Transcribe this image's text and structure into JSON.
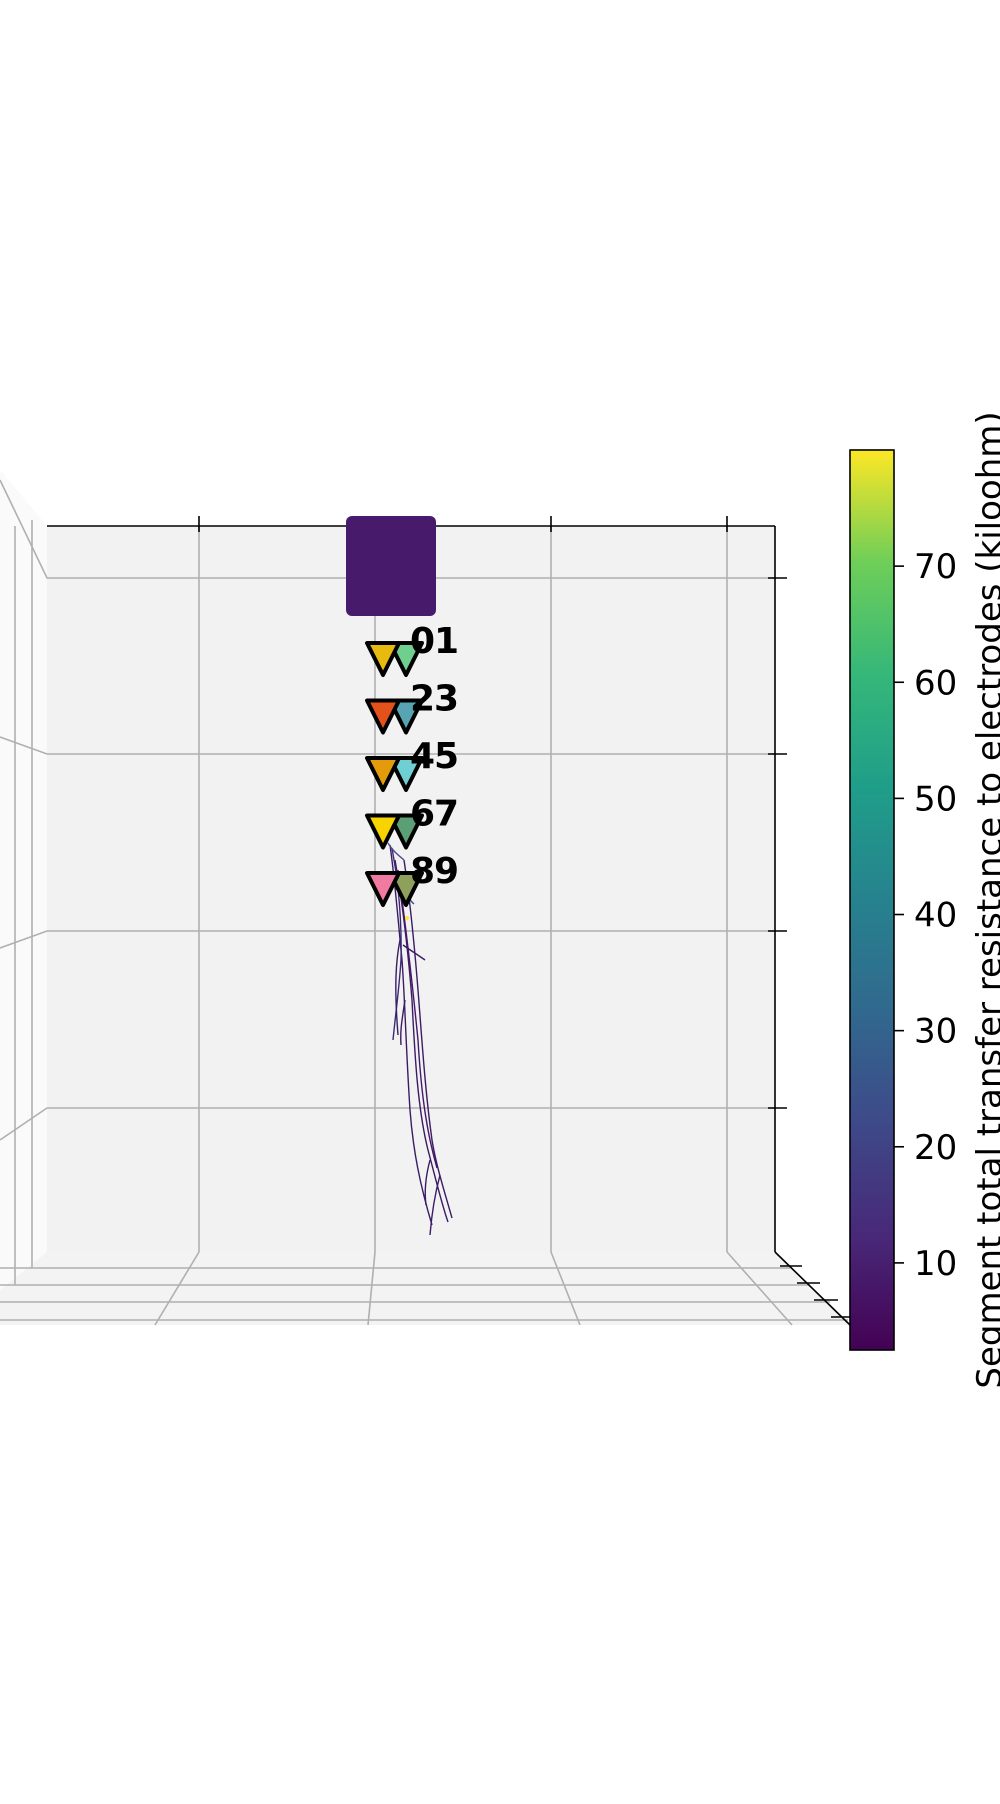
{
  "chart_data": {
    "type": "scatter",
    "title": "",
    "xlabel": "",
    "ylabel": "",
    "colorbar": {
      "label": "Segment total transfer resistance to electrodes (kiloohm)",
      "colormap": "viridis",
      "range": [
        2.5,
        80
      ],
      "ticks": [
        10,
        20,
        30,
        40,
        50,
        60,
        70
      ],
      "tick_labels": [
        "10",
        "20",
        "30",
        "40",
        "50",
        "60",
        "70"
      ]
    },
    "electrodes": [
      {
        "label": "0",
        "color": "#e8b90e"
      },
      {
        "label": "1",
        "color": "#6fcf8f"
      },
      {
        "label": "2",
        "color": "#e4521c"
      },
      {
        "label": "3",
        "color": "#57a5b2"
      },
      {
        "label": "4",
        "color": "#e39b0b"
      },
      {
        "label": "5",
        "color": "#6fd0d4"
      },
      {
        "label": "6",
        "color": "#f7d400"
      },
      {
        "label": "7",
        "color": "#5aa074"
      },
      {
        "label": "8",
        "color": "#f07aa0"
      },
      {
        "label": "9",
        "color": "#8ea05c"
      }
    ],
    "soma_color": "#481a6c",
    "neurite_color": "#3d1866",
    "grid": true
  }
}
